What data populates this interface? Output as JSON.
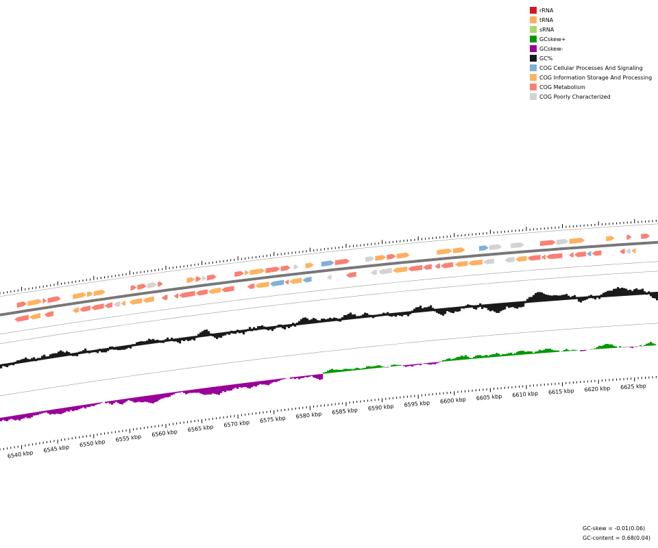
{
  "legend": [
    {
      "label": "rRNA",
      "color": "#d7191c"
    },
    {
      "label": "tRNA",
      "color": "#fdae61"
    },
    {
      "label": "sRNA",
      "color": "#a6d96a"
    },
    {
      "label": "GCskew+",
      "color": "#009900"
    },
    {
      "label": "GCskew-",
      "color": "#990099"
    },
    {
      "label": "GC%",
      "color": "#1a1a1a"
    },
    {
      "label": "COG Cellular Processes And Signaling",
      "color": "#7fb1d8"
    },
    {
      "label": "COG Information Storage And Processing",
      "color": "#fdb462"
    },
    {
      "label": "COG Metabolism",
      "color": "#fa8072"
    },
    {
      "label": "COG Poorly Characterized",
      "color": "#d3d3d3"
    }
  ],
  "scale_labels": [
    "6540 kbp",
    "6545 kbp",
    "6550 kbp",
    "6555 kbp",
    "6560 kbp",
    "6565 kbp",
    "6570 kbp",
    "6575 kbp",
    "6580 kbp",
    "6585 kbp",
    "6590 kbp",
    "6595 kbp",
    "6600 kbp",
    "6605 kbp",
    "6610 kbp",
    "6615 kbp",
    "6620 kbp",
    "6625 kbp"
  ],
  "footer": [
    "GC-skew = -0.01(0.06)",
    "GC-content = 0.68(0.04)"
  ]
}
